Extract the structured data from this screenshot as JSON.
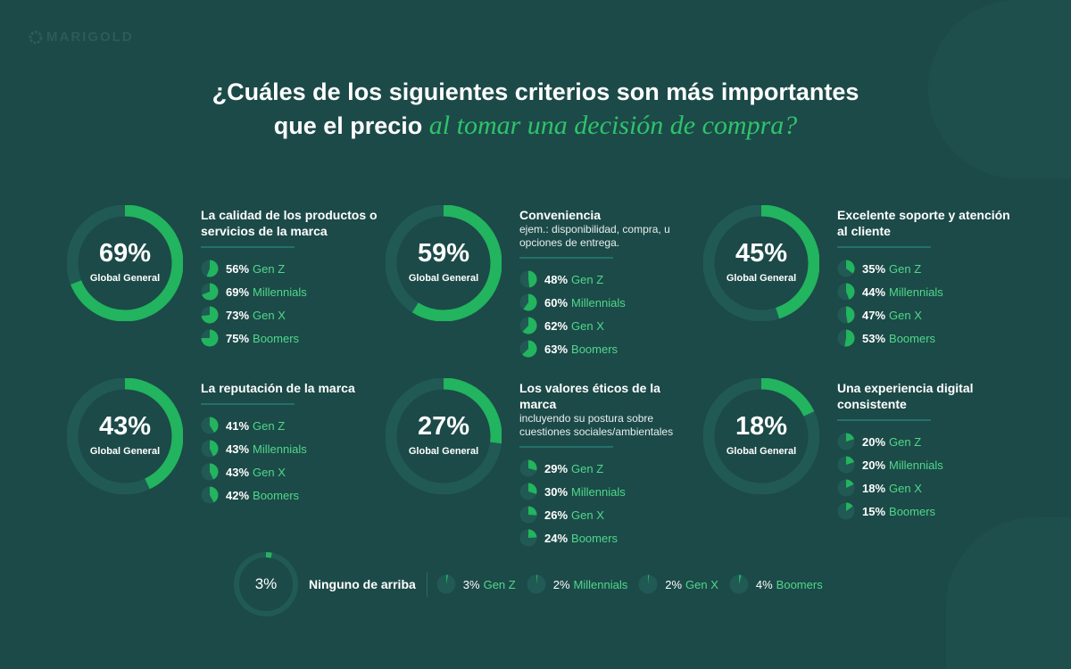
{
  "brand": {
    "logo": "MARIGOLD"
  },
  "title": {
    "line1": "¿Cuáles de los siguientes criterios son más importantes",
    "line2_plain": "que el precio",
    "line2_accent": "al tomar una decisión de compra?"
  },
  "colors": {
    "background": "#1c4a48",
    "accent": "#22b45e",
    "track": "#215a54",
    "label": "#4fd88a"
  },
  "chart_data": {
    "type": "donut",
    "center_label": "Global General",
    "items": [
      {
        "title": "La calidad de los productos o servicios de la marca",
        "subtitle": "",
        "global": 69,
        "breakdown": [
          {
            "label": "Gen Z",
            "value": 56
          },
          {
            "label": "Millennials",
            "value": 69
          },
          {
            "label": "Gen X",
            "value": 73
          },
          {
            "label": "Boomers",
            "value": 75
          }
        ]
      },
      {
        "title": "Conveniencia",
        "subtitle": "ejem.: disponibilidad, compra, u opciones de entrega.",
        "global": 59,
        "breakdown": [
          {
            "label": "Gen Z",
            "value": 48
          },
          {
            "label": "Millennials",
            "value": 60
          },
          {
            "label": "Gen X",
            "value": 62
          },
          {
            "label": "Boomers",
            "value": 63
          }
        ]
      },
      {
        "title": "Excelente soporte y atención al cliente",
        "subtitle": "",
        "global": 45,
        "breakdown": [
          {
            "label": "Gen Z",
            "value": 35
          },
          {
            "label": "Millennials",
            "value": 44
          },
          {
            "label": "Gen X",
            "value": 47
          },
          {
            "label": "Boomers",
            "value": 53
          }
        ]
      },
      {
        "title": "La reputación de la marca",
        "subtitle": "",
        "global": 43,
        "breakdown": [
          {
            "label": "Gen Z",
            "value": 41
          },
          {
            "label": "Millennials",
            "value": 43
          },
          {
            "label": "Gen X",
            "value": 43
          },
          {
            "label": "Boomers",
            "value": 42
          }
        ]
      },
      {
        "title": "Los valores éticos de la marca",
        "subtitle": "incluyendo su postura sobre cuestiones sociales/ambientales",
        "global": 27,
        "breakdown": [
          {
            "label": "Gen Z",
            "value": 29
          },
          {
            "label": "Millennials",
            "value": 30
          },
          {
            "label": "Gen X",
            "value": 26
          },
          {
            "label": "Boomers",
            "value": 24
          }
        ]
      },
      {
        "title": "Una experiencia digital consistente",
        "subtitle": "",
        "global": 18,
        "breakdown": [
          {
            "label": "Gen Z",
            "value": 20
          },
          {
            "label": "Millennials",
            "value": 20
          },
          {
            "label": "Gen X",
            "value": 18
          },
          {
            "label": "Boomers",
            "value": 15
          }
        ]
      }
    ],
    "none": {
      "title": "Ninguno de arriba",
      "global": 3,
      "breakdown": [
        {
          "label": "Gen Z",
          "value": 3
        },
        {
          "label": "Millennials",
          "value": 2
        },
        {
          "label": "Gen X",
          "value": 2
        },
        {
          "label": "Boomers",
          "value": 4
        }
      ]
    }
  }
}
